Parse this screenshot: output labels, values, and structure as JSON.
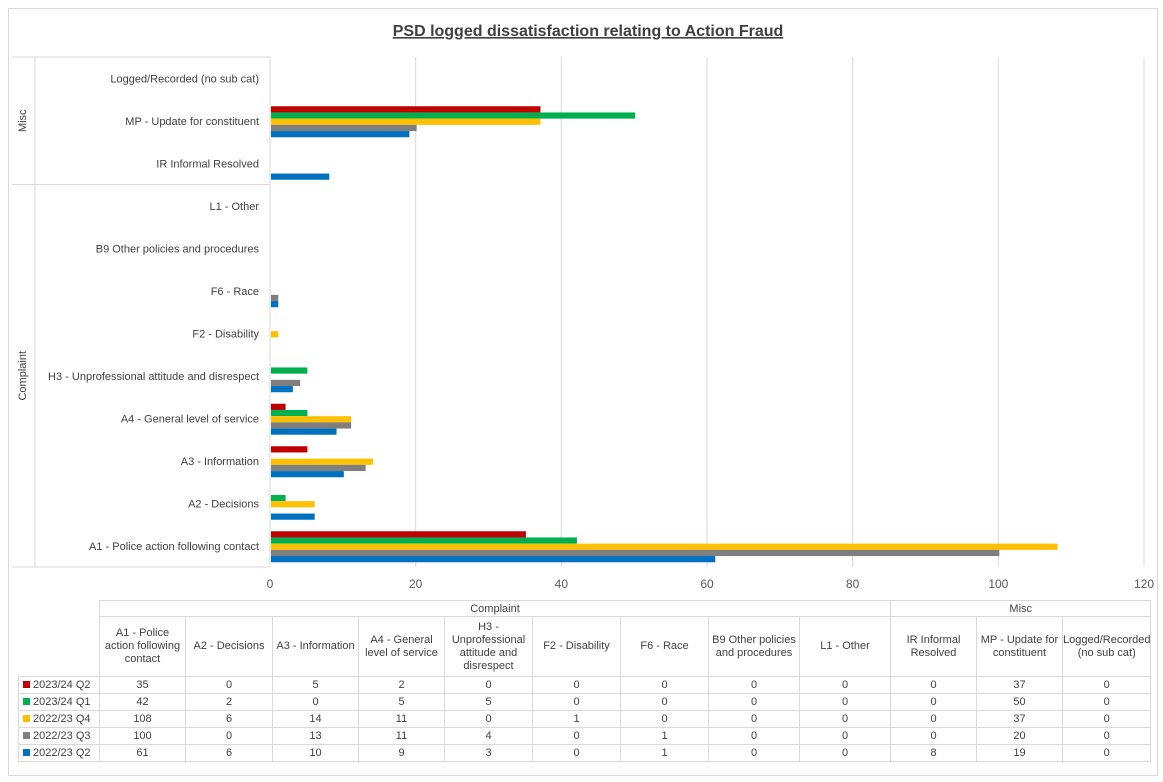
{
  "chart_data": {
    "type": "bar",
    "orientation": "horizontal",
    "title": "PSD logged dissatisfaction relating to Action Fraud",
    "xlim": [
      0,
      120
    ],
    "x_ticks": [
      "0",
      "20",
      "40",
      "60",
      "80",
      "100",
      "120"
    ],
    "grid": "vertical",
    "legend": "in data table",
    "groups": [
      {
        "name": "Misc",
        "categories": [
          "Logged/Recorded (no sub cat)",
          "MP - Update for constituent",
          "IR Informal Resolved"
        ]
      },
      {
        "name": "Complaint",
        "categories": [
          "L1 - Other",
          "B9 Other policies and procedures",
          "F6 - Race",
          "F2 - Disability",
          "H3 - Unprofessional attitude and disrespect",
          "A4 - General level of service",
          "A3 - Information",
          "A2 - Decisions",
          "A1 - Police action following contact"
        ]
      }
    ],
    "categories": [
      "A1 - Police action following contact",
      "A2 - Decisions",
      "A3 - Information",
      "A4 - General level of service",
      "H3 - Unprofessional attitude and disrespect",
      "F2 - Disability",
      "F6 - Race",
      "B9 Other policies and procedures",
      "L1 - Other",
      "IR Informal Resolved",
      "MP - Update for constituent",
      "Logged/Recorded (no sub cat)"
    ],
    "series": [
      {
        "name": "2023/24 Q2",
        "color": "#c00000",
        "values": [
          35,
          0,
          5,
          2,
          0,
          0,
          0,
          0,
          0,
          0,
          37,
          0
        ]
      },
      {
        "name": "2023/24 Q1",
        "color": "#00b050",
        "values": [
          42,
          2,
          0,
          5,
          5,
          0,
          0,
          0,
          0,
          0,
          50,
          0
        ]
      },
      {
        "name": "2022/23 Q4",
        "color": "#ffc000",
        "values": [
          108,
          6,
          14,
          11,
          0,
          1,
          0,
          0,
          0,
          0,
          37,
          0
        ]
      },
      {
        "name": "2022/23 Q3",
        "color": "#7f7f7f",
        "values": [
          100,
          0,
          13,
          11,
          4,
          0,
          1,
          0,
          0,
          0,
          20,
          0
        ]
      },
      {
        "name": "2022/23 Q2",
        "color": "#0070c0",
        "values": [
          61,
          6,
          10,
          9,
          3,
          0,
          1,
          0,
          0,
          8,
          19,
          0
        ]
      }
    ]
  },
  "table": {
    "group_headers": [
      "Complaint",
      "Misc"
    ],
    "column_headers": [
      "A1 - Police action following contact",
      "A2 - Decisions",
      "A3 - Information",
      "A4 - General level of service",
      "H3 - Unprofessional attitude and disrespect",
      "F2 - Disability",
      "F6 - Race",
      "B9 Other policies and procedures",
      "L1 - Other",
      "IR Informal Resolved",
      "MP - Update for constituent",
      "Logged/Recorded (no sub cat)"
    ]
  }
}
